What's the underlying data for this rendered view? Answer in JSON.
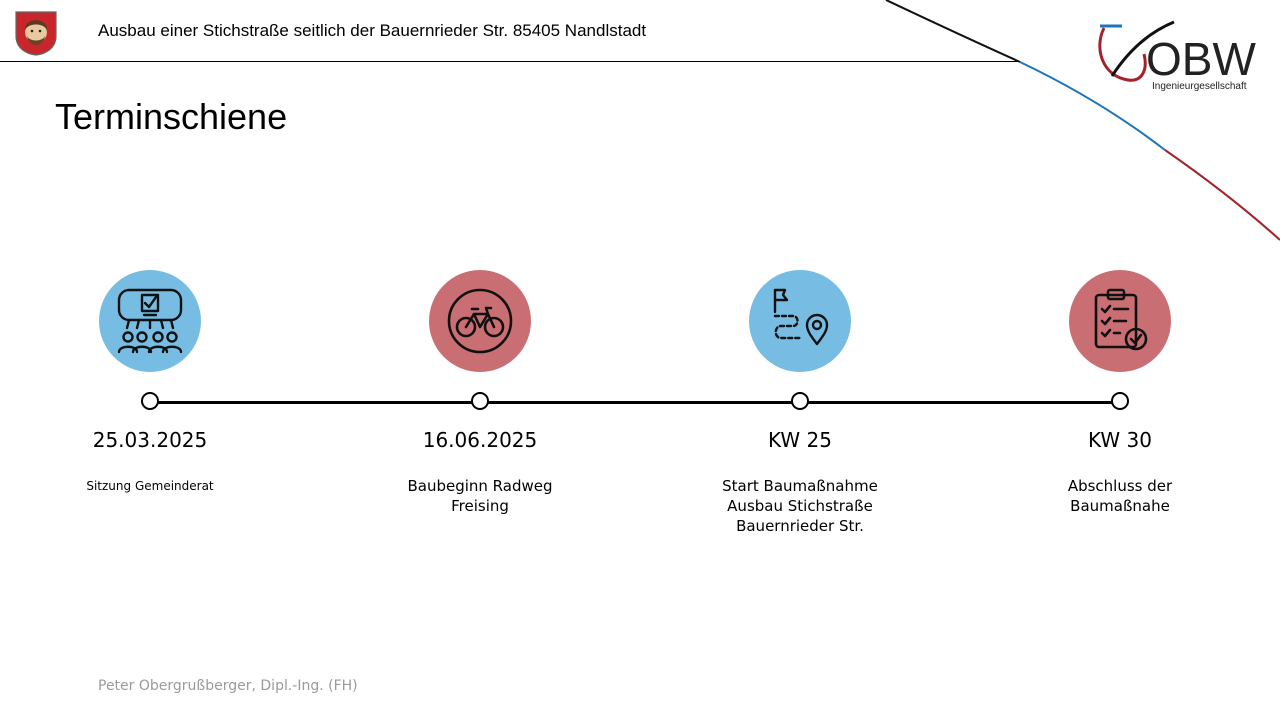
{
  "header": {
    "title": "Ausbau einer Stichstraße seitlich der Bauernrieder Str. 85405 Nandlstadt",
    "logo_text": "OBW",
    "logo_subtitle": "Ingenieurgesellschaft"
  },
  "page_title": "Terminschiene",
  "milestones": [
    {
      "date": "25.03.2025",
      "lines": [
        "Sitzung Gemeinderat"
      ],
      "icon": "council-meeting-icon",
      "color": "#77bde3"
    },
    {
      "date": "16.06.2025",
      "lines": [
        "Baubeginn Radweg",
        "Freising"
      ],
      "icon": "bicycle-icon",
      "color": "#c96f73"
    },
    {
      "date": "KW 25",
      "lines": [
        "Start Baumaßnahme",
        "Ausbau Stichstraße",
        "Bauernrieder Str."
      ],
      "icon": "route-flag-pin-icon",
      "color": "#77bde3"
    },
    {
      "date": "KW 30",
      "lines": [
        "Abschluss der",
        "Baumaßnahe"
      ],
      "icon": "checklist-icon",
      "color": "#c96f73"
    }
  ],
  "footer": "Peter Obergrußberger, Dipl.-Ing. (FH)",
  "colors": {
    "accent_blue": "#77bde3",
    "accent_red": "#c96f73",
    "logo_blue": "#1b75bc",
    "logo_red": "#a3232a"
  }
}
